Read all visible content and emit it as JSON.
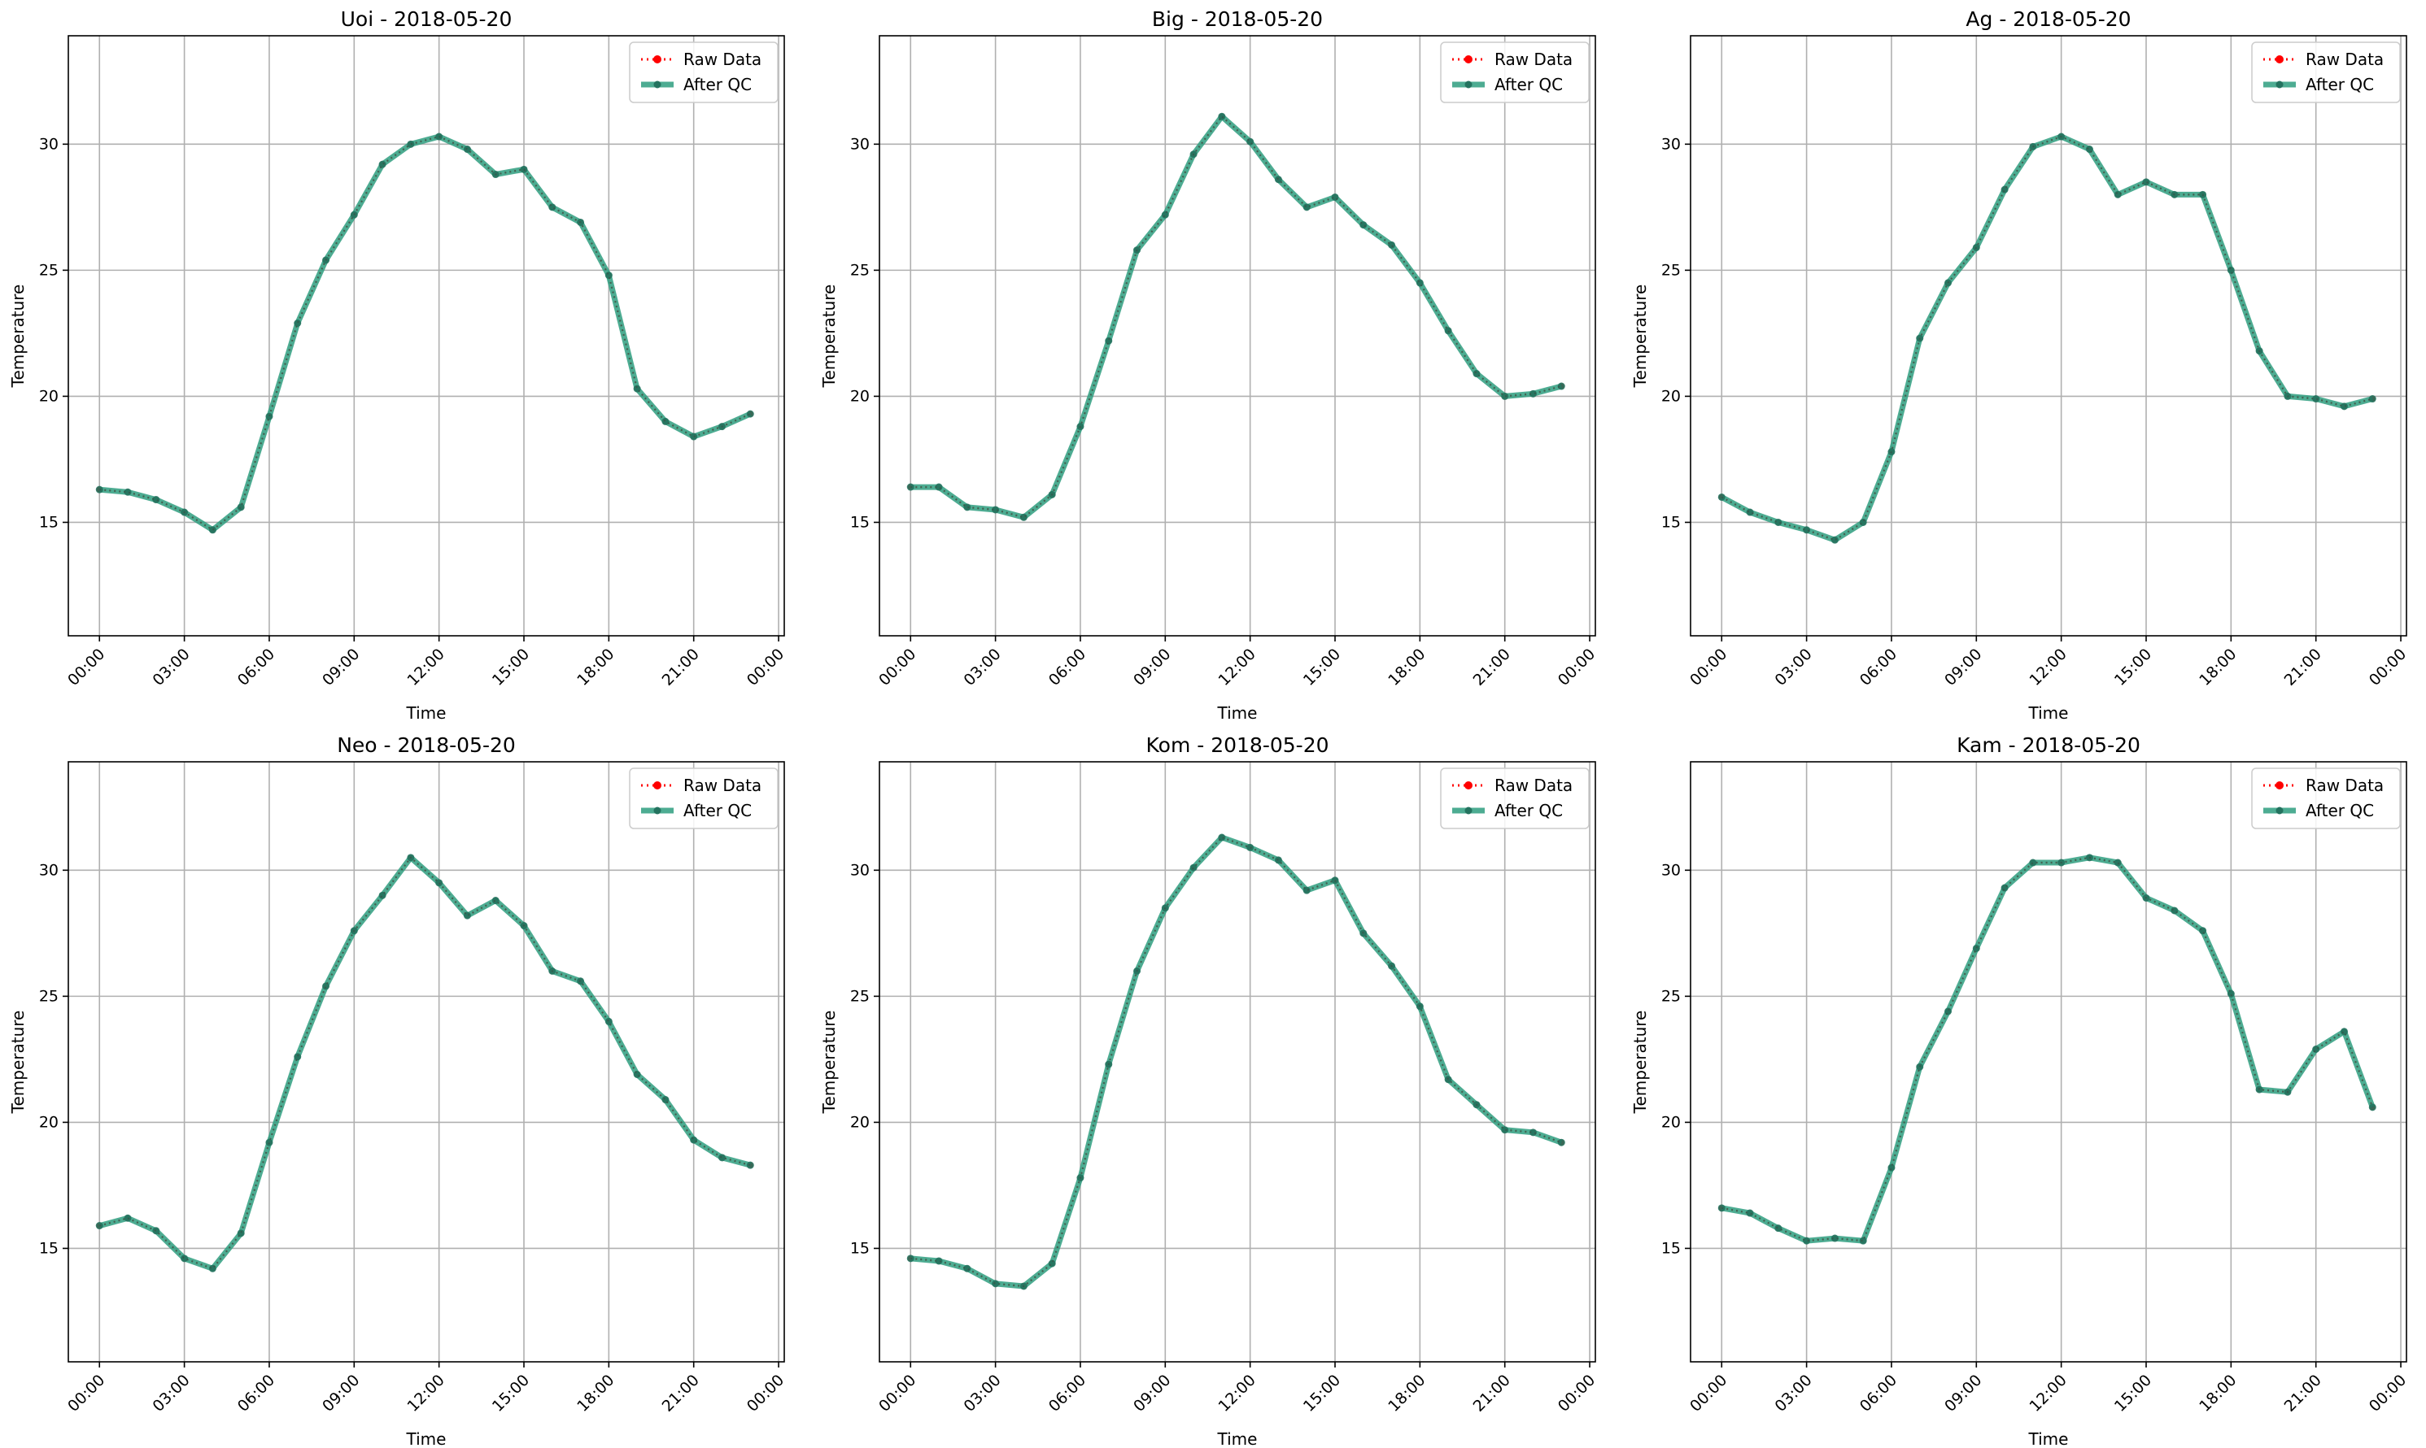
{
  "chart_data": [
    {
      "type": "line",
      "title": "Uoi - 2018-05-20",
      "xlabel": "Time",
      "ylabel": "Temperature",
      "xlim": [
        -1.1,
        24.2
      ],
      "ylim": [
        10.5,
        34.3
      ],
      "xticks": [
        {
          "v": 0,
          "label": "00:00"
        },
        {
          "v": 3,
          "label": "03:00"
        },
        {
          "v": 6,
          "label": "06:00"
        },
        {
          "v": 9,
          "label": "09:00"
        },
        {
          "v": 12,
          "label": "12:00"
        },
        {
          "v": 15,
          "label": "15:00"
        },
        {
          "v": 18,
          "label": "18:00"
        },
        {
          "v": 21,
          "label": "21:00"
        },
        {
          "v": 24,
          "label": "00:00"
        }
      ],
      "yticks": [
        15,
        20,
        25,
        30
      ],
      "grid": true,
      "legend": "upper right",
      "series": [
        {
          "name": "Raw Data",
          "color": "#ff0000",
          "style": "dotted",
          "values": [
            16.3,
            16.2,
            15.9,
            15.4,
            14.7,
            15.6,
            19.2,
            22.9,
            25.4,
            27.2,
            29.2,
            30.0,
            30.3,
            29.8,
            28.8,
            29.0,
            27.5,
            26.9,
            24.8,
            20.3,
            19.0,
            18.4,
            18.8,
            19.3
          ]
        },
        {
          "name": "After QC",
          "color": "#2e9e7f",
          "style": "solid",
          "values": [
            16.3,
            16.2,
            15.9,
            15.4,
            14.7,
            15.6,
            19.2,
            22.9,
            25.4,
            27.2,
            29.2,
            30.0,
            30.3,
            29.8,
            28.8,
            29.0,
            27.5,
            26.9,
            24.8,
            20.3,
            19.0,
            18.4,
            18.8,
            19.3
          ]
        }
      ]
    },
    {
      "type": "line",
      "title": "Big - 2018-05-20",
      "xlabel": "Time",
      "ylabel": "Temperature",
      "xlim": [
        -1.1,
        24.2
      ],
      "ylim": [
        10.5,
        34.3
      ],
      "xticks": [
        {
          "v": 0,
          "label": "00:00"
        },
        {
          "v": 3,
          "label": "03:00"
        },
        {
          "v": 6,
          "label": "06:00"
        },
        {
          "v": 9,
          "label": "09:00"
        },
        {
          "v": 12,
          "label": "12:00"
        },
        {
          "v": 15,
          "label": "15:00"
        },
        {
          "v": 18,
          "label": "18:00"
        },
        {
          "v": 21,
          "label": "21:00"
        },
        {
          "v": 24,
          "label": "00:00"
        }
      ],
      "yticks": [
        15,
        20,
        25,
        30
      ],
      "grid": true,
      "legend": "upper right",
      "series": [
        {
          "name": "Raw Data",
          "color": "#ff0000",
          "style": "dotted",
          "values": [
            16.4,
            16.4,
            15.6,
            15.5,
            15.2,
            16.1,
            18.8,
            22.2,
            25.8,
            27.2,
            29.6,
            31.1,
            30.1,
            28.6,
            27.5,
            27.9,
            26.8,
            26.0,
            24.5,
            22.6,
            20.9,
            20.0,
            20.1,
            20.4
          ]
        },
        {
          "name": "After QC",
          "color": "#2e9e7f",
          "style": "solid",
          "values": [
            16.4,
            16.4,
            15.6,
            15.5,
            15.2,
            16.1,
            18.8,
            22.2,
            25.8,
            27.2,
            29.6,
            31.1,
            30.1,
            28.6,
            27.5,
            27.9,
            26.8,
            26.0,
            24.5,
            22.6,
            20.9,
            20.0,
            20.1,
            20.4
          ]
        }
      ]
    },
    {
      "type": "line",
      "title": "Ag - 2018-05-20",
      "xlabel": "Time",
      "ylabel": "Temperature",
      "xlim": [
        -1.1,
        24.2
      ],
      "ylim": [
        10.5,
        34.3
      ],
      "xticks": [
        {
          "v": 0,
          "label": "00:00"
        },
        {
          "v": 3,
          "label": "03:00"
        },
        {
          "v": 6,
          "label": "06:00"
        },
        {
          "v": 9,
          "label": "09:00"
        },
        {
          "v": 12,
          "label": "12:00"
        },
        {
          "v": 15,
          "label": "15:00"
        },
        {
          "v": 18,
          "label": "18:00"
        },
        {
          "v": 21,
          "label": "21:00"
        },
        {
          "v": 24,
          "label": "00:00"
        }
      ],
      "yticks": [
        15,
        20,
        25,
        30
      ],
      "grid": true,
      "legend": "upper right",
      "series": [
        {
          "name": "Raw Data",
          "color": "#ff0000",
          "style": "dotted",
          "values": [
            16.0,
            15.4,
            15.0,
            14.7,
            14.3,
            15.0,
            17.8,
            22.3,
            24.5,
            25.9,
            28.2,
            29.9,
            30.3,
            29.8,
            28.0,
            28.5,
            28.0,
            28.0,
            25.0,
            21.8,
            20.0,
            19.9,
            19.6,
            19.9
          ]
        },
        {
          "name": "After QC",
          "color": "#2e9e7f",
          "style": "solid",
          "values": [
            16.0,
            15.4,
            15.0,
            14.7,
            14.3,
            15.0,
            17.8,
            22.3,
            24.5,
            25.9,
            28.2,
            29.9,
            30.3,
            29.8,
            28.0,
            28.5,
            28.0,
            28.0,
            25.0,
            21.8,
            20.0,
            19.9,
            19.6,
            19.9
          ]
        }
      ]
    },
    {
      "type": "line",
      "title": "Neo - 2018-05-20",
      "xlabel": "Time",
      "ylabel": "Temperature",
      "xlim": [
        -1.1,
        24.2
      ],
      "ylim": [
        10.5,
        34.3
      ],
      "xticks": [
        {
          "v": 0,
          "label": "00:00"
        },
        {
          "v": 3,
          "label": "03:00"
        },
        {
          "v": 6,
          "label": "06:00"
        },
        {
          "v": 9,
          "label": "09:00"
        },
        {
          "v": 12,
          "label": "12:00"
        },
        {
          "v": 15,
          "label": "15:00"
        },
        {
          "v": 18,
          "label": "18:00"
        },
        {
          "v": 21,
          "label": "21:00"
        },
        {
          "v": 24,
          "label": "00:00"
        }
      ],
      "yticks": [
        15,
        20,
        25,
        30
      ],
      "grid": true,
      "legend": "upper right",
      "series": [
        {
          "name": "Raw Data",
          "color": "#ff0000",
          "style": "dotted",
          "values": [
            15.9,
            16.2,
            15.7,
            14.6,
            14.2,
            15.6,
            19.2,
            22.6,
            25.4,
            27.6,
            29.0,
            30.5,
            29.5,
            28.2,
            28.8,
            27.8,
            26.0,
            25.6,
            24.0,
            21.9,
            20.9,
            19.3,
            18.6,
            18.3
          ]
        },
        {
          "name": "After QC",
          "color": "#2e9e7f",
          "style": "solid",
          "values": [
            15.9,
            16.2,
            15.7,
            14.6,
            14.2,
            15.6,
            19.2,
            22.6,
            25.4,
            27.6,
            29.0,
            30.5,
            29.5,
            28.2,
            28.8,
            27.8,
            26.0,
            25.6,
            24.0,
            21.9,
            20.9,
            19.3,
            18.6,
            18.3
          ]
        }
      ]
    },
    {
      "type": "line",
      "title": "Kom - 2018-05-20",
      "xlabel": "Time",
      "ylabel": "Temperature",
      "xlim": [
        -1.1,
        24.2
      ],
      "ylim": [
        10.5,
        34.3
      ],
      "xticks": [
        {
          "v": 0,
          "label": "00:00"
        },
        {
          "v": 3,
          "label": "03:00"
        },
        {
          "v": 6,
          "label": "06:00"
        },
        {
          "v": 9,
          "label": "09:00"
        },
        {
          "v": 12,
          "label": "12:00"
        },
        {
          "v": 15,
          "label": "15:00"
        },
        {
          "v": 18,
          "label": "18:00"
        },
        {
          "v": 21,
          "label": "21:00"
        },
        {
          "v": 24,
          "label": "00:00"
        }
      ],
      "yticks": [
        15,
        20,
        25,
        30
      ],
      "grid": true,
      "legend": "upper right",
      "series": [
        {
          "name": "Raw Data",
          "color": "#ff0000",
          "style": "dotted",
          "values": [
            14.6,
            14.5,
            14.2,
            13.6,
            13.5,
            14.4,
            17.8,
            22.3,
            26.0,
            28.5,
            30.1,
            31.3,
            30.9,
            30.4,
            29.2,
            29.6,
            27.5,
            26.2,
            24.6,
            21.7,
            20.7,
            19.7,
            19.6,
            19.2
          ]
        },
        {
          "name": "After QC",
          "color": "#2e9e7f",
          "style": "solid",
          "values": [
            14.6,
            14.5,
            14.2,
            13.6,
            13.5,
            14.4,
            17.8,
            22.3,
            26.0,
            28.5,
            30.1,
            31.3,
            30.9,
            30.4,
            29.2,
            29.6,
            27.5,
            26.2,
            24.6,
            21.7,
            20.7,
            19.7,
            19.6,
            19.2
          ]
        }
      ]
    },
    {
      "type": "line",
      "title": "Kam - 2018-05-20",
      "xlabel": "Time",
      "ylabel": "Temperature",
      "xlim": [
        -1.1,
        24.2
      ],
      "ylim": [
        10.5,
        34.3
      ],
      "xticks": [
        {
          "v": 0,
          "label": "00:00"
        },
        {
          "v": 3,
          "label": "03:00"
        },
        {
          "v": 6,
          "label": "06:00"
        },
        {
          "v": 9,
          "label": "09:00"
        },
        {
          "v": 12,
          "label": "12:00"
        },
        {
          "v": 15,
          "label": "15:00"
        },
        {
          "v": 18,
          "label": "18:00"
        },
        {
          "v": 21,
          "label": "21:00"
        },
        {
          "v": 24,
          "label": "00:00"
        }
      ],
      "yticks": [
        15,
        20,
        25,
        30
      ],
      "grid": true,
      "legend": "upper right",
      "series": [
        {
          "name": "Raw Data",
          "color": "#ff0000",
          "style": "dotted",
          "values": [
            16.6,
            16.4,
            15.8,
            15.3,
            15.4,
            15.3,
            18.2,
            22.2,
            24.4,
            26.9,
            29.3,
            30.3,
            30.3,
            30.5,
            30.3,
            28.9,
            28.4,
            27.6,
            25.1,
            21.3,
            21.2,
            22.9,
            23.6,
            20.6
          ]
        },
        {
          "name": "After QC",
          "color": "#2e9e7f",
          "style": "solid",
          "values": [
            16.6,
            16.4,
            15.8,
            15.3,
            15.4,
            15.3,
            18.2,
            22.2,
            24.4,
            26.9,
            29.3,
            30.3,
            30.3,
            30.5,
            30.3,
            28.9,
            28.4,
            27.6,
            25.1,
            21.3,
            21.2,
            22.9,
            23.6,
            20.6
          ]
        }
      ]
    }
  ]
}
